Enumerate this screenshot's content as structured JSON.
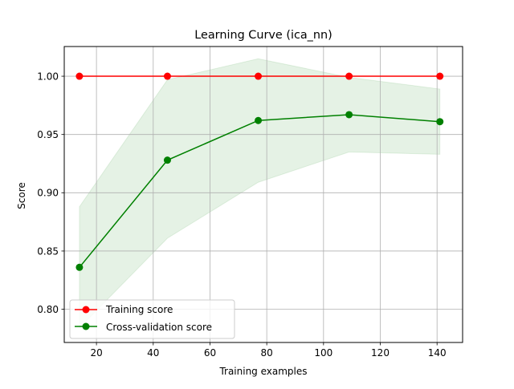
{
  "chart_data": {
    "type": "line",
    "title": "Learning Curve (ica_nn)",
    "xlabel": "Training examples",
    "ylabel": "Score",
    "xlim": [
      8.65,
      149.0
    ],
    "ylim": [
      0.7715,
      1.0255
    ],
    "x_ticks": [
      20,
      40,
      60,
      80,
      100,
      120,
      140
    ],
    "y_ticks": [
      0.8,
      0.85,
      0.9,
      0.95,
      1.0
    ],
    "x_tick_labels": [
      "20",
      "40",
      "60",
      "80",
      "100",
      "120",
      "140"
    ],
    "y_tick_labels": [
      "0.80",
      "0.85",
      "0.90",
      "0.95",
      "1.00"
    ],
    "grid": true,
    "legend_position": "lower-left",
    "x": [
      14,
      45,
      77,
      109,
      141
    ],
    "series": [
      {
        "name": "Training score",
        "color": "#ff0000",
        "values": [
          1.0,
          1.0,
          1.0,
          1.0,
          1.0
        ],
        "band_lower": [
          1.0,
          1.0,
          1.0,
          1.0,
          1.0
        ],
        "band_upper": [
          1.0,
          1.0,
          1.0,
          1.0,
          1.0
        ]
      },
      {
        "name": "Cross-validation score",
        "color": "#008000",
        "values": [
          0.836,
          0.928,
          0.962,
          0.967,
          0.961
        ],
        "band_lower": [
          0.784,
          0.861,
          0.909,
          0.935,
          0.933
        ],
        "band_upper": [
          0.888,
          0.997,
          1.015,
          0.999,
          0.989
        ]
      }
    ]
  }
}
